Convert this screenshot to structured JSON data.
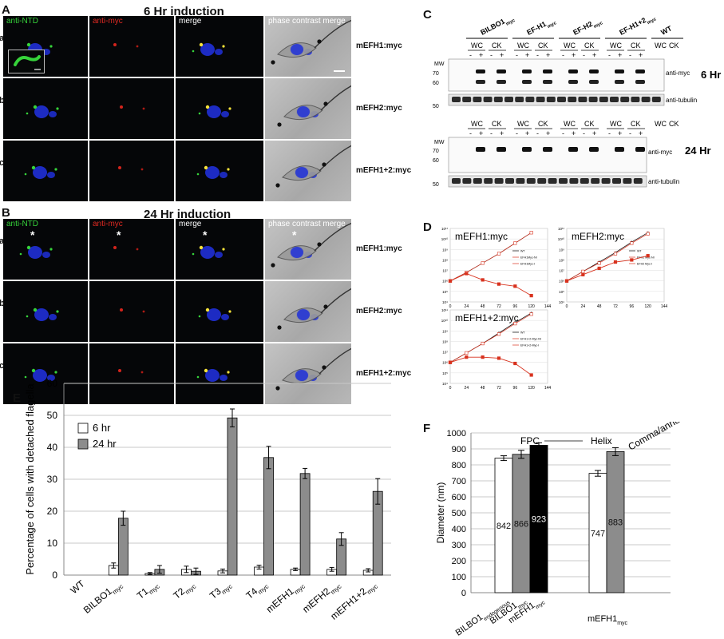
{
  "panelA": {
    "label": "A",
    "title": "6 Hr induction",
    "channels": [
      "anti-NTD",
      "anti-myc",
      "merge",
      "phase contrast merge"
    ],
    "rows": [
      {
        "letter": "a",
        "name": "mEFH1:myc"
      },
      {
        "letter": "b",
        "name": "mEFH2:myc"
      },
      {
        "letter": "c",
        "name": "mEFH1+2:myc"
      }
    ]
  },
  "panelB": {
    "label": "B",
    "title": "24 Hr induction",
    "channels": [
      "anti-NTD",
      "anti-myc",
      "merge",
      "phase contrast merge"
    ],
    "asterisk": "*",
    "rows": [
      {
        "letter": "a",
        "name": "mEFH1:myc"
      },
      {
        "letter": "b",
        "name": "mEFH2:myc"
      },
      {
        "letter": "c",
        "name": "mEFH1+2:myc"
      }
    ]
  },
  "panelC": {
    "label": "C",
    "groups": [
      {
        "name": "BILBO1",
        "sub": "myc"
      },
      {
        "name": "EF-H1",
        "sub": "myc"
      },
      {
        "name": "EF-H2",
        "sub": "myc"
      },
      {
        "name": "EF-H1+2",
        "sub": "myc"
      },
      {
        "name": "WT",
        "sub": ""
      }
    ],
    "fraction_labels": [
      "WC",
      "CK"
    ],
    "signs": [
      "-",
      "+"
    ],
    "mw_label": "MW",
    "mw_marks": [
      "70",
      "60",
      "50"
    ],
    "blot_labels": {
      "myc": "anti-myc",
      "tubulin": "anti-tubulin"
    },
    "time_labels": [
      "6 Hr",
      "24 Hr"
    ]
  },
  "panelD": {
    "label": "D",
    "x_ticks": [
      "0",
      "24",
      "48",
      "72",
      "96",
      "120",
      "144"
    ],
    "y_ticks": [
      "10¹¹",
      "10¹⁰",
      "10⁹",
      "10⁸",
      "10⁷",
      "10⁶",
      "10⁵",
      "10⁴"
    ],
    "charts": [
      {
        "title": "mEFH1:myc",
        "legend": [
          "WT",
          "EFH1Myc-NI",
          "EFH1Myc-I"
        ]
      },
      {
        "title": "mEFH2:myc",
        "legend": [
          "WT",
          "EFH2 Myc-NI",
          "EFH2 Myc-I"
        ]
      },
      {
        "title": "mEFH1+2:myc",
        "legend": [
          "WT",
          "EFH1+2-Myc-NI",
          "EFH1+2-Myc-I"
        ]
      }
    ]
  },
  "panelE": {
    "label": "E"
  },
  "panelF": {
    "label": "F"
  },
  "colors": {
    "gray_bar": "#8c8c8c",
    "red_series": "#d8321e",
    "fluor_blue": "#2030d8",
    "fluor_green": "#36d33a"
  },
  "chart_data": [
    {
      "type": "bar",
      "panel": "E",
      "ylabel": "Percentage of cells with detached flagella",
      "ylim": [
        0,
        60
      ],
      "y_ticks": [
        0,
        10,
        20,
        30,
        40,
        50,
        60
      ],
      "grid": true,
      "legend_position": "top-left",
      "categories": [
        {
          "base": "WT",
          "sub": ""
        },
        {
          "base": "BILBO1",
          "sub": "myc"
        },
        {
          "base": "T1",
          "sub": "myc"
        },
        {
          "base": "T2",
          "sub": "myc"
        },
        {
          "base": "T3",
          "sub": "myc"
        },
        {
          "base": "T4",
          "sub": "myc"
        },
        {
          "base": "mEFH1",
          "sub": "myc"
        },
        {
          "base": "mEFH2",
          "sub": "myc"
        },
        {
          "base": "mEFH1+2",
          "sub": "myc"
        }
      ],
      "series": [
        {
          "name": "6 hr",
          "color": "#ffffff",
          "values": [
            0,
            3.0,
            0.5,
            1.8,
            1.3,
            2.5,
            1.8,
            1.8,
            1.5
          ],
          "errors": [
            0,
            0.8,
            0.3,
            1.0,
            0.6,
            0.6,
            0.4,
            0.6,
            0.5
          ]
        },
        {
          "name": "24 hr",
          "color": "#8c8c8c",
          "values": [
            0,
            17.8,
            1.8,
            1.2,
            49.2,
            36.8,
            31.8,
            11.3,
            26.2
          ],
          "errors": [
            0,
            2.2,
            1.2,
            1.0,
            2.8,
            3.5,
            1.6,
            2.0,
            4.0
          ]
        }
      ]
    },
    {
      "type": "bar",
      "panel": "F",
      "ylabel": "Diameter (nm)",
      "ylim": [
        0,
        1000
      ],
      "y_ticks": [
        0,
        100,
        200,
        300,
        400,
        500,
        600,
        700,
        800,
        900,
        1000
      ],
      "grid": true,
      "annotations": [
        "FPC",
        "Helix",
        "Comma/annulus"
      ],
      "bars": [
        {
          "base": "BILBO1",
          "sub": "endogenous",
          "value": 842,
          "label": "842",
          "error": 15,
          "color": "#ffffff"
        },
        {
          "base": "BILBO1",
          "sub": "myc",
          "value": 866,
          "label": "866",
          "error": 25,
          "color": "#8c8c8c"
        },
        {
          "base": "mEFH1",
          "sub": "myc",
          "value": 923,
          "label": "923",
          "error": 15,
          "color": "#000000"
        },
        {
          "base": "mEFH1",
          "sub": "myc",
          "value": 747,
          "label": "747",
          "error": 18,
          "color": "#ffffff"
        },
        {
          "base": "",
          "sub": "",
          "value": 883,
          "label": "883",
          "error": 25,
          "color": "#8c8c8c"
        }
      ]
    },
    {
      "type": "line",
      "panel": "D",
      "title": "mEFH1:myc",
      "x": [
        0,
        24,
        48,
        72,
        96,
        120
      ],
      "xlim": [
        0,
        144
      ],
      "ylim": [
        4,
        11
      ],
      "y_scale": "log10 (10^4 to 10^11)",
      "series": [
        {
          "name": "WT",
          "values": [
            6.0,
            6.8,
            7.7,
            8.6,
            9.6,
            10.6
          ]
        },
        {
          "name": "EFH1Myc-NI",
          "values": [
            6.0,
            6.8,
            7.7,
            8.6,
            9.6,
            10.6
          ]
        },
        {
          "name": "EFH1Myc-I",
          "values": [
            6.0,
            6.7,
            6.1,
            5.7,
            5.5,
            4.6
          ]
        }
      ]
    },
    {
      "type": "line",
      "panel": "D",
      "title": "mEFH2:myc",
      "x": [
        0,
        24,
        48,
        72,
        96,
        120
      ],
      "xlim": [
        0,
        144
      ],
      "ylim": [
        4,
        11
      ],
      "y_scale": "log10 (10^4 to 10^11)",
      "series": [
        {
          "name": "WT",
          "values": [
            6.0,
            6.9,
            7.8,
            8.7,
            9.7,
            10.6
          ]
        },
        {
          "name": "EFH2 Myc-NI",
          "values": [
            6.0,
            6.9,
            7.7,
            8.6,
            9.6,
            10.5
          ]
        },
        {
          "name": "EFH2 Myc-I",
          "values": [
            6.0,
            6.6,
            7.2,
            7.8,
            8.0,
            8.4
          ]
        }
      ]
    },
    {
      "type": "line",
      "panel": "D",
      "title": "mEFH1+2:myc",
      "x": [
        0,
        24,
        48,
        72,
        96,
        120
      ],
      "xlim": [
        0,
        144
      ],
      "ylim": [
        4,
        11
      ],
      "y_scale": "log10 (10^4 to 10^11)",
      "series": [
        {
          "name": "WT",
          "values": [
            6.0,
            6.9,
            7.8,
            8.8,
            9.8,
            10.7
          ]
        },
        {
          "name": "EFH1+2-Myc-NI",
          "values": [
            6.0,
            6.9,
            7.8,
            8.7,
            9.7,
            10.6
          ]
        },
        {
          "name": "EFH1+2-Myc-I",
          "values": [
            6.0,
            6.5,
            6.5,
            6.4,
            5.9,
            4.8
          ]
        }
      ]
    }
  ]
}
